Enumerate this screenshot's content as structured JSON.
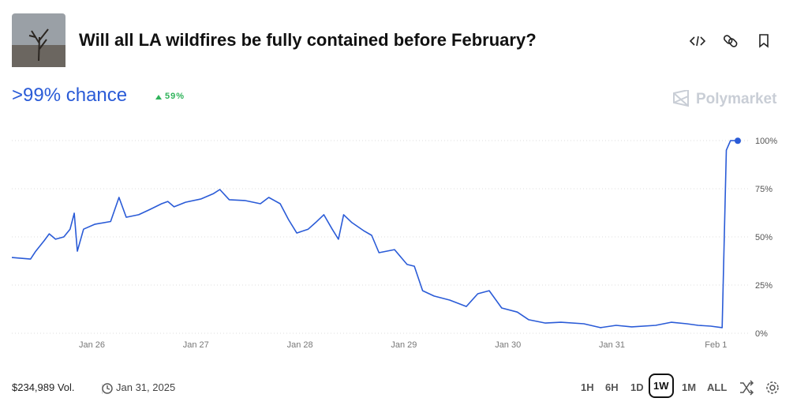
{
  "header": {
    "title": "Will all LA wildfires be fully contained before February?",
    "chance": ">99% chance",
    "change": "59%",
    "brand": "Polymarket"
  },
  "footer": {
    "volume": "$234,989 Vol.",
    "date": "Jan 31, 2025",
    "ranges": [
      "1H",
      "6H",
      "1D",
      "1W",
      "1M",
      "ALL"
    ]
  },
  "chart_data": {
    "type": "line",
    "x": [
      25.23,
      25.41,
      25.46,
      25.54,
      25.59,
      25.65,
      25.73,
      25.79,
      25.83,
      25.86,
      25.92,
      26.03,
      26.18,
      26.26,
      26.33,
      26.45,
      26.56,
      26.67,
      26.73,
      26.79,
      26.9,
      27.05,
      27.17,
      27.23,
      27.32,
      27.47,
      27.62,
      27.7,
      27.81,
      27.89,
      27.97,
      28.08,
      28.15,
      28.23,
      28.31,
      28.37,
      28.42,
      28.5,
      28.61,
      28.69,
      28.76,
      28.91,
      29.03,
      29.1,
      29.18,
      29.29,
      29.44,
      29.6,
      29.71,
      29.82,
      29.94,
      30.09,
      30.2,
      30.36,
      30.51,
      30.73,
      30.89,
      31.04,
      31.19,
      31.42,
      31.57,
      31.72,
      31.83,
      31.95,
      32.06,
      32.1,
      32.14,
      32.21
    ],
    "series": [
      {
        "color": "#2a5bd7",
        "values": [
          39.3,
          38.5,
          42.6,
          48,
          51.6,
          48.8,
          50,
          54,
          62.3,
          42.6,
          54,
          56.6,
          58,
          70.5,
          60.2,
          61.5,
          64.3,
          67.2,
          68.4,
          65.6,
          68,
          69.7,
          72.5,
          74.6,
          69.3,
          68.9,
          67.2,
          70.5,
          67.2,
          59,
          52,
          54,
          57.4,
          61.5,
          54,
          48.8,
          61.5,
          57.4,
          53.3,
          50.8,
          41.8,
          43.4,
          35.7,
          34.8,
          22.1,
          19.3,
          17.2,
          13.9,
          20.5,
          22.1,
          13.1,
          11,
          7,
          5.3,
          5.7,
          4.9,
          2.9,
          4.1,
          3.3,
          4.1,
          5.7,
          4.9,
          4.1,
          3.7,
          2.9,
          95,
          100,
          99.9
        ]
      }
    ],
    "xlim": [
      25.23,
      32.21
    ],
    "xticks": [
      {
        "value": 26,
        "label": "Jan 26"
      },
      {
        "value": 27,
        "label": "Jan 27"
      },
      {
        "value": 28,
        "label": "Jan 28"
      },
      {
        "value": 29,
        "label": "Jan 29"
      },
      {
        "value": 30,
        "label": "Jan 30"
      },
      {
        "value": 31,
        "label": "Jan 31"
      },
      {
        "value": 32,
        "label": "Feb 1"
      }
    ],
    "ylim": [
      0,
      100
    ],
    "yticks": [
      {
        "value": 0,
        "label": "0%"
      },
      {
        "value": 25,
        "label": "25%"
      },
      {
        "value": 50,
        "label": "50%"
      },
      {
        "value": 75,
        "label": "75%"
      },
      {
        "value": 100,
        "label": "100%"
      }
    ],
    "grid": true
  }
}
